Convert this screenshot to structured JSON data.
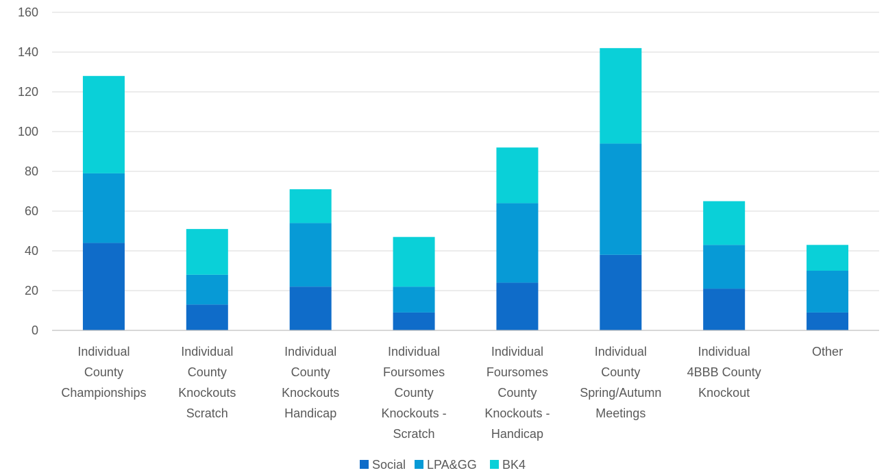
{
  "chart_data": {
    "type": "bar",
    "stacked": true,
    "categories": [
      [
        "Individual",
        "County",
        "Championships"
      ],
      [
        "Individual",
        "County",
        "Knockouts",
        "Scratch"
      ],
      [
        "Individual",
        "County",
        "Knockouts",
        "Handicap"
      ],
      [
        "Individual",
        "Foursomes",
        "County",
        "Knockouts -",
        "Scratch"
      ],
      [
        "Individual",
        "Foursomes",
        "County",
        "Knockouts -",
        "Handicap"
      ],
      [
        "Individual",
        "County",
        "Spring/Autumn",
        "Meetings"
      ],
      [
        "Individual",
        "4BBB County",
        "Knockout"
      ],
      [
        "Other"
      ]
    ],
    "series": [
      {
        "name": "Social",
        "color": "#0f6cc9",
        "values": [
          44,
          13,
          22,
          9,
          24,
          38,
          21,
          9
        ]
      },
      {
        "name": "LPA&GG",
        "color": "#079ad6",
        "values": [
          35,
          15,
          32,
          13,
          40,
          56,
          22,
          21
        ]
      },
      {
        "name": "BK4",
        "color": "#0ad0d8",
        "values": [
          49,
          23,
          17,
          25,
          28,
          48,
          22,
          13
        ]
      }
    ],
    "ylim": [
      0,
      160
    ],
    "yticks": [
      0,
      20,
      40,
      60,
      80,
      100,
      120,
      140,
      160
    ],
    "grid": true,
    "legend": "bottom"
  }
}
